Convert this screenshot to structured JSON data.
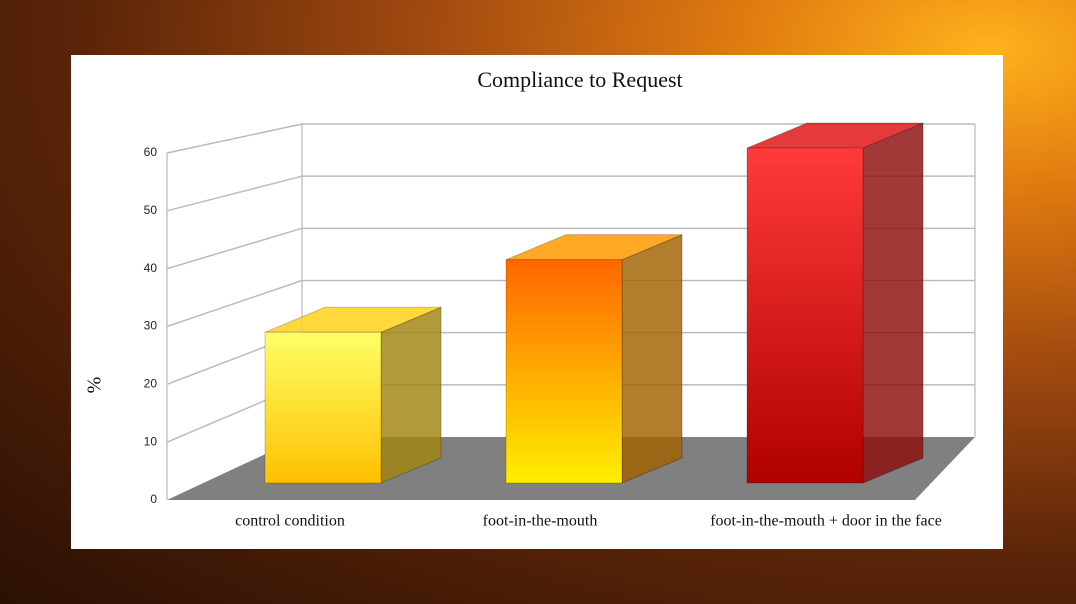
{
  "chart_data": {
    "type": "bar3d",
    "title": "Compliance to Request",
    "y_label": "%",
    "categories": [
      "control condition",
      "foot-in-the-mouth",
      "foot-in-the-mouth + door in the face"
    ],
    "values": [
      27,
      40,
      60
    ],
    "colors": [
      "#ffd21a",
      "#ff9a00",
      "#e01818"
    ],
    "ylim": [
      0,
      60
    ],
    "yticks": [
      0,
      10,
      20,
      30,
      40,
      50,
      60
    ],
    "grid": true
  }
}
